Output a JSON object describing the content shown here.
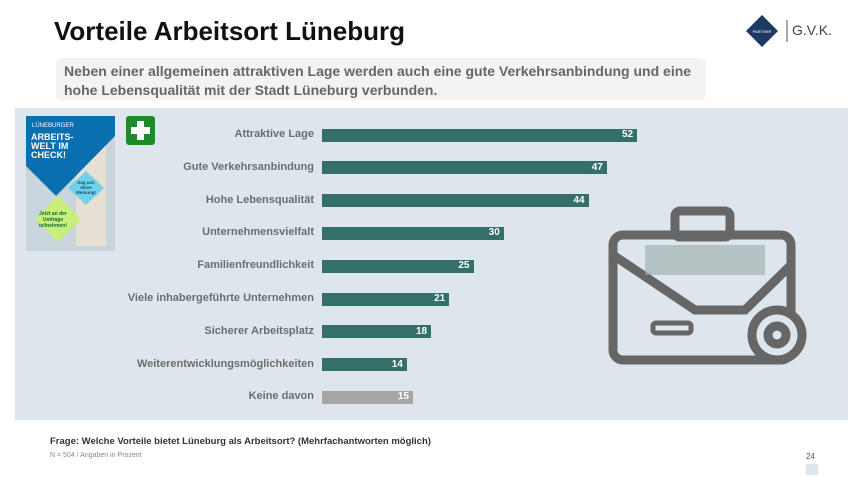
{
  "header": {
    "title": "Vorteile Arbeitsort Lüneburg",
    "logo_text": "LÜNE PARTNERSCHAFT",
    "brand": "G.V.K."
  },
  "subtitle": "Neben einer allgemeinen attraktiven Lage werden auch eine gute Verkehrsanbindung und eine hohe Lebensqualität mit der Stadt Lüneburg verbunden.",
  "poster": {
    "brand": "LÜNEBURGER",
    "headline": "ARBEITS-WELT IM CHECK!",
    "badge1": "Sag uns deine Meinung!",
    "badge2": "Jetzt an der Umfrage teilnehmen!"
  },
  "chart_data": {
    "type": "bar",
    "orientation": "horizontal",
    "categories": [
      "Attraktive Lage",
      "Gute Verkehrsanbindung",
      "Hohe Lebensqualität",
      "Unternehmensvielfalt",
      "Familienfreundlichkeit",
      "Viele inhabergeführte Unternehmen",
      "Sicherer Arbeitsplatz",
      "Weiterentwicklungsmöglichkeiten",
      "Keine davon"
    ],
    "values": [
      52,
      47,
      44,
      30,
      25,
      21,
      18,
      14,
      15
    ],
    "colors": [
      "#356f6a",
      "#356f6a",
      "#356f6a",
      "#356f6a",
      "#356f6a",
      "#356f6a",
      "#356f6a",
      "#356f6a",
      "#a6a6a6"
    ],
    "grid": false
  },
  "footer": {
    "question": "Frage: Welche Vorteile bietet Lüneburg als Arbeitsort? (Mehrfachantworten möglich)",
    "note": "N = 504 / Angaben in Prozent",
    "page": "24"
  }
}
